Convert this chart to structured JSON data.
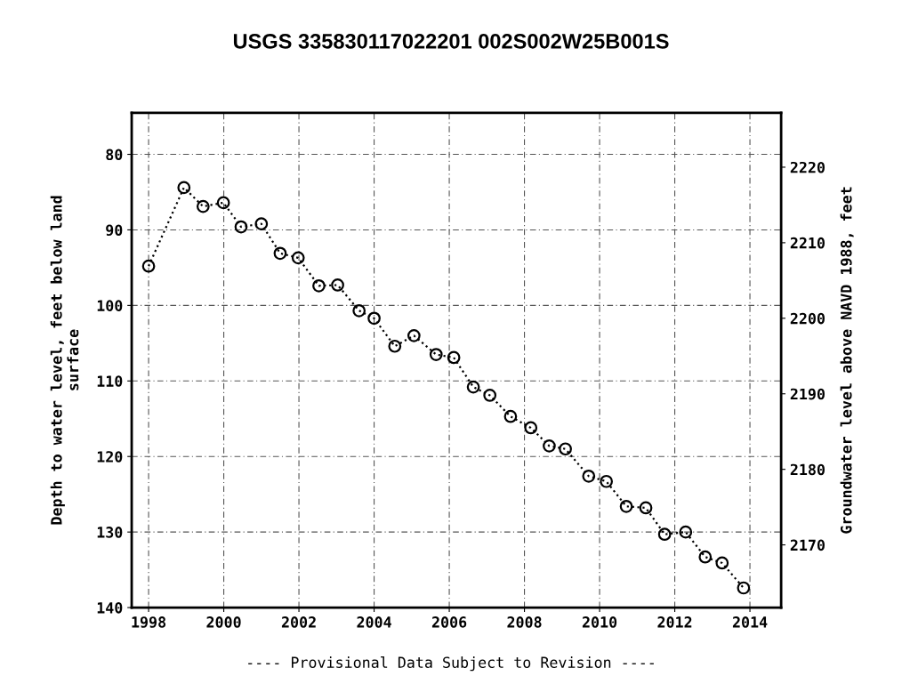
{
  "chart_data": {
    "type": "line",
    "title": "USGS 335830117022201 002S002W25B001S",
    "ylabel": "Depth to water level, feet below land\nsurface",
    "y2label": "Groundwater level above NAVD 1988, feet",
    "annotations": [
      "---- Provisional Data Subject to Revision ----"
    ],
    "x": [
      1998.0,
      1998.94,
      1999.45,
      1999.99,
      2000.46,
      2001.0,
      2001.5,
      2001.98,
      2002.53,
      2003.03,
      2003.6,
      2004.0,
      2004.55,
      2005.06,
      2005.65,
      2006.12,
      2006.64,
      2007.08,
      2007.63,
      2008.17,
      2008.66,
      2009.09,
      2009.71,
      2010.18,
      2010.71,
      2011.23,
      2011.73,
      2012.29,
      2012.81,
      2013.26,
      2013.83
    ],
    "series": [
      {
        "color": "#000000",
        "values": [
          94.8,
          84.4,
          86.9,
          86.4,
          89.6,
          89.2,
          93.1,
          93.7,
          97.4,
          97.3,
          100.7,
          101.7,
          105.4,
          104.0,
          106.5,
          106.9,
          110.8,
          111.9,
          114.7,
          116.2,
          118.6,
          119.0,
          122.6,
          123.3,
          126.6,
          126.8,
          130.3,
          130.0,
          133.3,
          134.1,
          137.4
        ]
      }
    ],
    "xlim": [
      1997.55,
      2014.83
    ],
    "xticks": [
      1998,
      2000,
      2002,
      2004,
      2006,
      2008,
      2010,
      2012,
      2014
    ],
    "ylim": [
      140,
      74.5
    ],
    "yticks": [
      80,
      90,
      100,
      110,
      120,
      130,
      140
    ],
    "y2lim": [
      2161.7,
      2227.2
    ],
    "y2ticks": [
      2170,
      2180,
      2190,
      2200,
      2210,
      2220
    ],
    "grid": true,
    "marker": "circle",
    "line_style": "dotted"
  }
}
